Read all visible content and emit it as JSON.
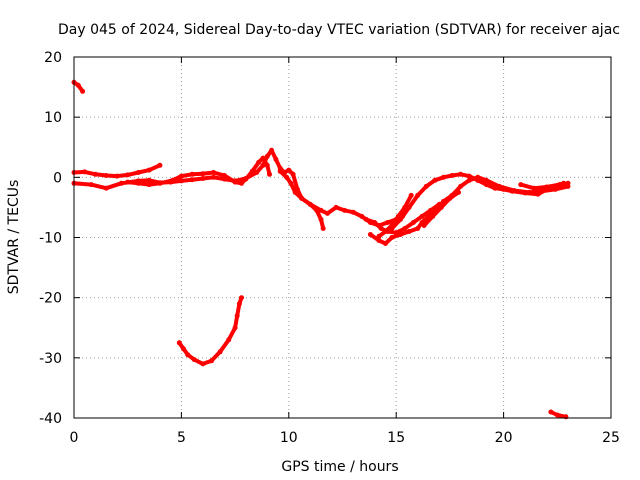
{
  "chart_data": {
    "type": "scatter",
    "title": "Day 045 of 2024, Sidereal Day-to-day VTEC variation (SDTVAR) for receiver ajac",
    "xlabel": "GPS time / hours",
    "ylabel": "SDTVAR / TECUs",
    "xlim": [
      0,
      25
    ],
    "ylim": [
      -40,
      20
    ],
    "xticks": [
      0,
      5,
      10,
      15,
      20,
      25
    ],
    "yticks": [
      -40,
      -30,
      -20,
      -10,
      0,
      10,
      20
    ],
    "grid": true,
    "series_color": "#ff0000",
    "series": [
      {
        "name": "track-1",
        "points": [
          [
            0.0,
            15.8
          ],
          [
            0.2,
            15.3
          ],
          [
            0.4,
            14.3
          ]
        ]
      },
      {
        "name": "track-2",
        "points": [
          [
            0.0,
            0.8
          ],
          [
            0.5,
            0.9
          ],
          [
            1.0,
            0.5
          ],
          [
            1.5,
            0.3
          ],
          [
            2.0,
            0.2
          ],
          [
            2.5,
            0.4
          ],
          [
            3.0,
            0.8
          ],
          [
            3.5,
            1.2
          ],
          [
            4.0,
            2.0
          ]
        ]
      },
      {
        "name": "track-3",
        "points": [
          [
            0.0,
            -1.0
          ],
          [
            0.8,
            -1.2
          ],
          [
            1.5,
            -1.8
          ],
          [
            2.2,
            -1.0
          ],
          [
            3.0,
            -0.6
          ],
          [
            3.5,
            -0.5
          ],
          [
            4.0,
            -0.9
          ],
          [
            4.5,
            -0.8
          ],
          [
            5.0,
            -0.6
          ],
          [
            5.5,
            -0.4
          ],
          [
            6.0,
            -0.2
          ],
          [
            6.5,
            0.0
          ],
          [
            7.0,
            -0.3
          ],
          [
            7.5,
            -0.6
          ],
          [
            8.0,
            -0.2
          ],
          [
            8.5,
            0.8
          ],
          [
            8.8,
            2.0
          ],
          [
            9.0,
            3.5
          ],
          [
            9.2,
            4.5
          ],
          [
            9.4,
            3.0
          ],
          [
            9.6,
            1.5
          ],
          [
            9.8,
            0.8
          ],
          [
            10.0,
            1.2
          ],
          [
            10.2,
            0.5
          ],
          [
            10.4,
            -2.0
          ],
          [
            10.6,
            -3.5
          ],
          [
            11.0,
            -4.5
          ],
          [
            11.5,
            -5.5
          ],
          [
            11.8,
            -6.0
          ],
          [
            12.2,
            -5.0
          ],
          [
            12.6,
            -5.5
          ],
          [
            13.0,
            -5.8
          ],
          [
            13.4,
            -6.5
          ],
          [
            13.8,
            -7.5
          ],
          [
            14.2,
            -8.0
          ],
          [
            14.6,
            -7.5
          ],
          [
            15.0,
            -7.0
          ],
          [
            15.3,
            -6.5
          ]
        ]
      },
      {
        "name": "track-4",
        "points": [
          [
            2.5,
            -0.8
          ],
          [
            3.0,
            -1.0
          ],
          [
            3.5,
            -1.2
          ],
          [
            4.0,
            -1.0
          ],
          [
            4.6,
            -0.5
          ],
          [
            5.0,
            0.2
          ],
          [
            5.5,
            0.5
          ],
          [
            6.0,
            0.6
          ],
          [
            6.5,
            0.8
          ],
          [
            7.0,
            0.3
          ],
          [
            7.5,
            -0.8
          ],
          [
            7.8,
            -1.0
          ],
          [
            8.0,
            -0.3
          ],
          [
            8.3,
            1.0
          ],
          [
            8.6,
            2.5
          ],
          [
            8.8,
            3.2
          ],
          [
            9.0,
            2.0
          ],
          [
            9.1,
            0.5
          ]
        ]
      },
      {
        "name": "track-5",
        "points": [
          [
            9.6,
            1.0
          ],
          [
            9.9,
            0.0
          ],
          [
            10.1,
            -1.0
          ],
          [
            10.3,
            -2.5
          ],
          [
            10.6,
            -3.5
          ],
          [
            11.0,
            -4.5
          ],
          [
            11.3,
            -5.5
          ],
          [
            11.5,
            -7.0
          ],
          [
            11.6,
            -8.5
          ]
        ]
      },
      {
        "name": "track-6",
        "points": [
          [
            13.8,
            -9.5
          ],
          [
            14.2,
            -10.5
          ],
          [
            14.5,
            -11.0
          ],
          [
            14.8,
            -10.0
          ],
          [
            15.2,
            -9.5
          ],
          [
            15.6,
            -9.0
          ],
          [
            16.0,
            -8.5
          ],
          [
            16.2,
            -7.5
          ],
          [
            16.5,
            -6.5
          ],
          [
            16.8,
            -5.5
          ],
          [
            17.2,
            -4.0
          ],
          [
            17.6,
            -3.0
          ],
          [
            18.0,
            -1.5
          ],
          [
            18.4,
            -0.5
          ],
          [
            18.8,
            0.0
          ],
          [
            19.2,
            -0.5
          ],
          [
            19.8,
            -1.5
          ],
          [
            20.5,
            -2.2
          ],
          [
            21.2,
            -2.5
          ],
          [
            21.8,
            -2.3
          ],
          [
            22.4,
            -2.0
          ],
          [
            23.0,
            -1.5
          ]
        ]
      },
      {
        "name": "track-7",
        "points": [
          [
            14.8,
            -8.5
          ],
          [
            15.2,
            -7.0
          ],
          [
            15.6,
            -5.0
          ],
          [
            16.0,
            -3.0
          ],
          [
            16.4,
            -1.5
          ],
          [
            16.8,
            -0.5
          ],
          [
            17.2,
            0.0
          ],
          [
            17.6,
            0.3
          ],
          [
            18.0,
            0.5
          ],
          [
            18.4,
            0.2
          ],
          [
            18.8,
            -0.5
          ],
          [
            19.2,
            -1.2
          ],
          [
            19.6,
            -1.8
          ],
          [
            20.0,
            -2.0
          ],
          [
            20.4,
            -2.3
          ],
          [
            21.0,
            -2.6
          ],
          [
            21.6,
            -2.8
          ],
          [
            22.2,
            -1.6
          ],
          [
            22.8,
            -1.0
          ]
        ]
      },
      {
        "name": "track-8",
        "points": [
          [
            13.6,
            -7.0
          ],
          [
            14.0,
            -7.5
          ],
          [
            14.3,
            -8.5
          ],
          [
            14.6,
            -9.0
          ],
          [
            15.0,
            -9.2
          ],
          [
            15.4,
            -8.5
          ],
          [
            15.8,
            -7.5
          ],
          [
            16.2,
            -6.5
          ],
          [
            16.6,
            -5.5
          ],
          [
            17.0,
            -4.5
          ]
        ]
      },
      {
        "name": "track-9",
        "points": [
          [
            14.2,
            -9.8
          ],
          [
            14.5,
            -9.0
          ],
          [
            14.8,
            -8.0
          ],
          [
            15.1,
            -6.5
          ],
          [
            15.4,
            -5.0
          ],
          [
            15.7,
            -3.0
          ]
        ]
      },
      {
        "name": "track-10",
        "points": [
          [
            16.3,
            -8.0
          ],
          [
            16.7,
            -6.5
          ],
          [
            17.1,
            -5.0
          ],
          [
            17.5,
            -3.5
          ],
          [
            17.9,
            -2.5
          ]
        ]
      },
      {
        "name": "track-11",
        "points": [
          [
            20.8,
            -1.2
          ],
          [
            21.4,
            -1.8
          ],
          [
            22.0,
            -1.6
          ],
          [
            22.6,
            -1.2
          ],
          [
            23.0,
            -1.0
          ]
        ]
      },
      {
        "name": "track-12",
        "points": [
          [
            4.9,
            -27.5
          ],
          [
            5.1,
            -28.5
          ],
          [
            5.3,
            -29.5
          ],
          [
            5.6,
            -30.3
          ],
          [
            6.0,
            -31.0
          ],
          [
            6.4,
            -30.5
          ],
          [
            6.8,
            -29.0
          ],
          [
            7.2,
            -27.0
          ],
          [
            7.5,
            -25.0
          ],
          [
            7.6,
            -23.0
          ],
          [
            7.7,
            -21.0
          ],
          [
            7.8,
            -20.0
          ]
        ]
      },
      {
        "name": "track-13",
        "points": [
          [
            22.2,
            -39.0
          ],
          [
            22.5,
            -39.5
          ],
          [
            22.9,
            -39.8
          ]
        ]
      }
    ]
  }
}
